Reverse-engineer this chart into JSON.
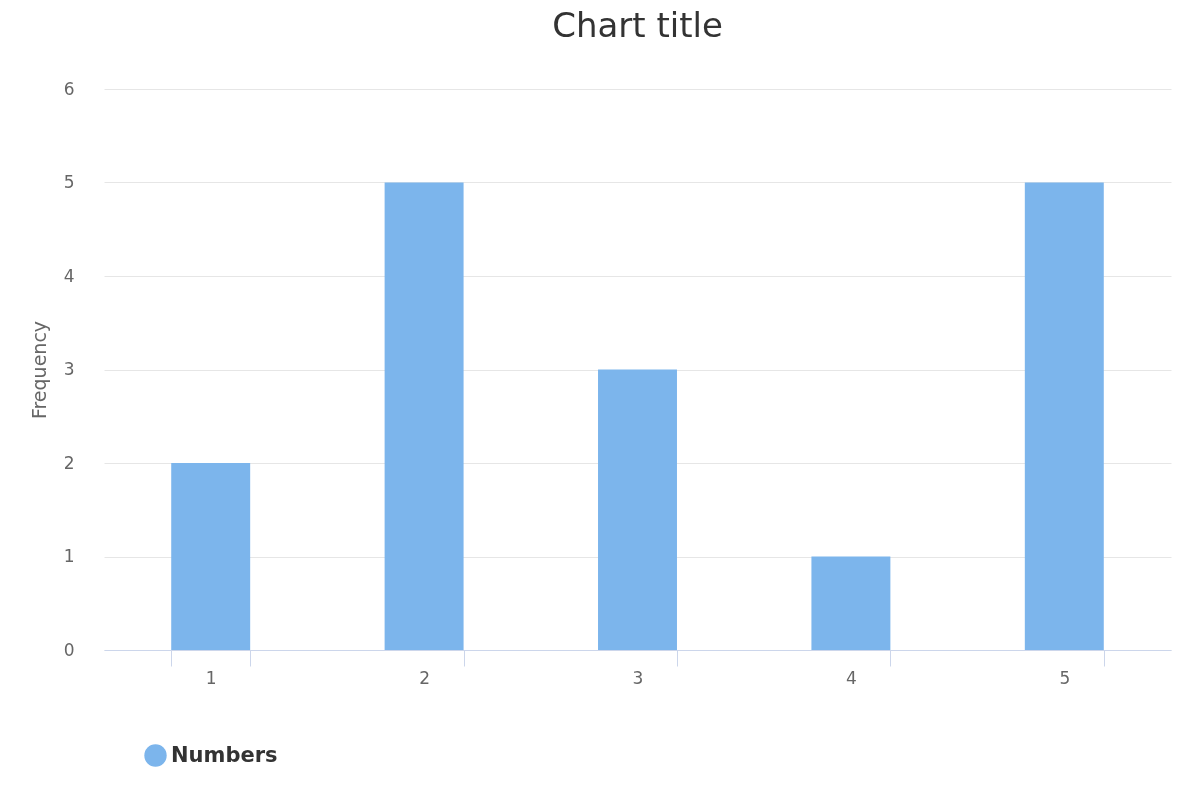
{
  "chart_data": {
    "type": "bar",
    "title": "Chart title",
    "ylabel": "Frequency",
    "categories": [
      "1",
      "2",
      "3",
      "4",
      "5"
    ],
    "series": [
      {
        "name": "Numbers",
        "color": "#7cb5ec",
        "values": [
          2,
          5,
          3,
          1,
          5
        ]
      }
    ],
    "ylim": [
      0,
      6
    ],
    "yticks": [
      0,
      1,
      2,
      3,
      4,
      5,
      6
    ],
    "grid": "y",
    "legend": "bottom"
  }
}
